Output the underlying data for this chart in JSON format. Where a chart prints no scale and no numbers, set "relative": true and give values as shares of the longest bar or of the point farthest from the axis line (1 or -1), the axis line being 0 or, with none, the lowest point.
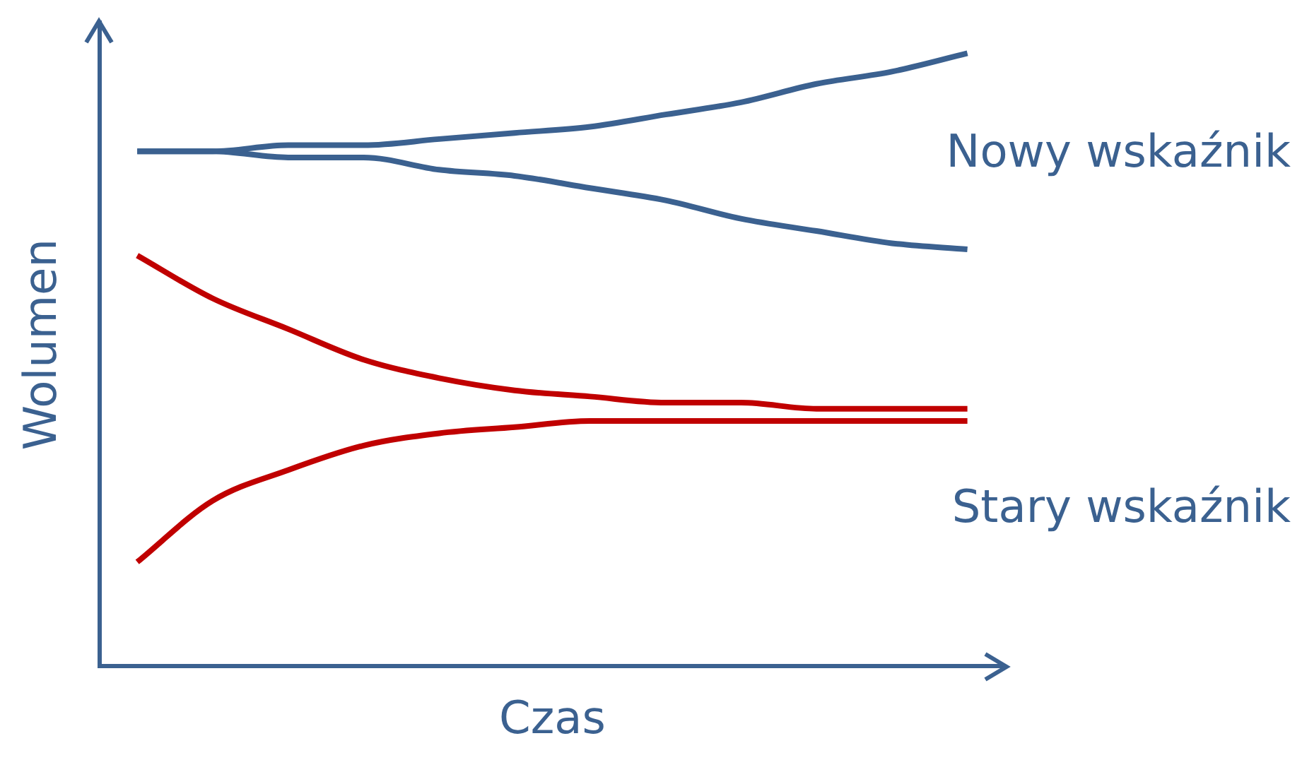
{
  "chart_data": {
    "type": "line",
    "relative": true,
    "xlabel": "Czas",
    "ylabel": "Wolumen",
    "legend": false,
    "marker": "none",
    "line_style": "solid",
    "categories": [
      null,
      null,
      null,
      null,
      null,
      null,
      null,
      null,
      null,
      null,
      null,
      null
    ],
    "series": [
      {
        "name": "Nowy wskaźnik",
        "color": "#3b6190",
        "values": [
          0.84,
          0.84,
          0.85,
          0.85,
          0.86,
          0.87,
          0.88,
          0.9,
          0.92,
          0.95,
          0.97,
          1
        ]
      },
      {
        "color": "#3b6190",
        "values": [
          0.84,
          0.84,
          0.83,
          0.83,
          0.81,
          0.8,
          0.78,
          0.76,
          0.73,
          0.71,
          0.69,
          0.68
        ]
      },
      {
        "name": "Stary wskaźnik",
        "color": "#c00000",
        "values": [
          0.67,
          0.6,
          0.55,
          0.5,
          0.47,
          0.45,
          0.44,
          0.43,
          0.43,
          0.42,
          0.42,
          0.42
        ]
      },
      {
        "color": "#c00000",
        "values": [
          0.17,
          0.27,
          0.32,
          0.36,
          0.38,
          0.39,
          0.4,
          0.4,
          0.4,
          0.4,
          0.4,
          0.4
        ]
      }
    ]
  }
}
